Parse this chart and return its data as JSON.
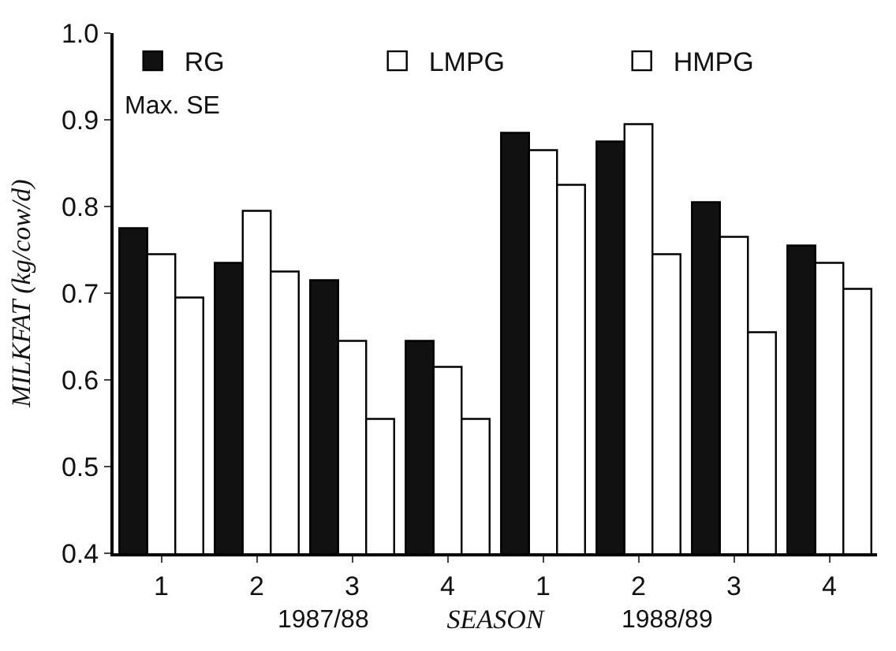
{
  "chart_data": {
    "type": "bar",
    "xlabel": "SEASON",
    "ylabel": "MILKFAT (kg/cow/d)",
    "categories": [
      "1",
      "2",
      "3",
      "4",
      "1",
      "2",
      "3",
      "4"
    ],
    "series": [
      {
        "name": "RG",
        "color": "#111111",
        "values": [
          0.775,
          0.735,
          0.715,
          0.645,
          0.885,
          0.875,
          0.805,
          0.755
        ]
      },
      {
        "name": "LMPG",
        "color": "#ffffff",
        "values": [
          0.745,
          0.795,
          0.645,
          0.615,
          0.865,
          0.895,
          0.765,
          0.735
        ]
      },
      {
        "name": "HMPG",
        "color": "#ffffff",
        "values": [
          0.695,
          0.725,
          0.555,
          0.555,
          0.825,
          0.745,
          0.655,
          0.705
        ]
      }
    ],
    "ylim": [
      0.4,
      1.0
    ],
    "yticks": [
      0.4,
      0.5,
      0.6,
      0.7,
      0.8,
      0.9,
      {
        "value": 1,
        "label": "1.0"
      }
    ],
    "annotations": [
      "Max. SE",
      "1987/88",
      "1988/89"
    ],
    "legend": "top"
  }
}
